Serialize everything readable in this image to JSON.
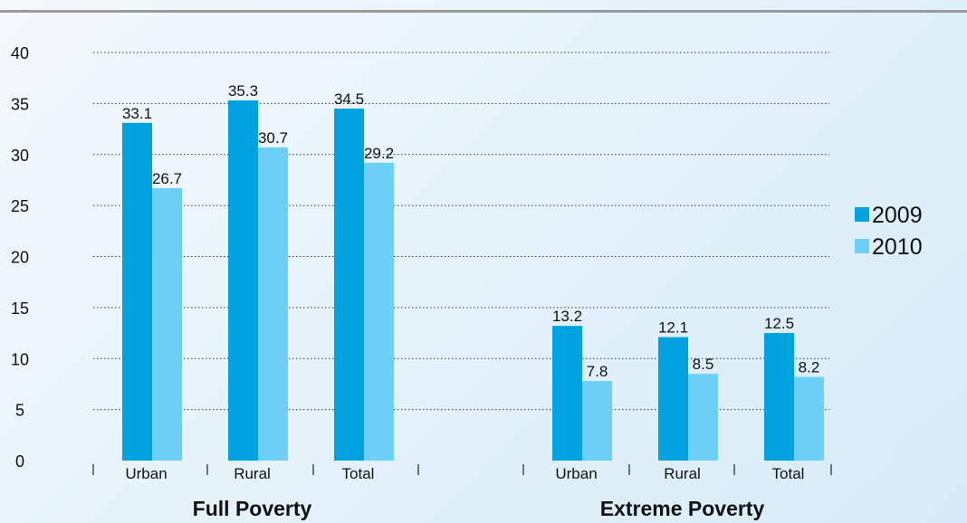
{
  "colors": {
    "series_2009": "#00a3e0",
    "series_2010": "#6dcff6",
    "grid": "#333333",
    "text": "#111111"
  },
  "chart_data": {
    "type": "bar",
    "title": "",
    "xlabel": "",
    "ylabel": "",
    "ylim": [
      0,
      40
    ],
    "yticks": [
      0,
      5,
      10,
      15,
      20,
      25,
      30,
      35,
      40
    ],
    "grid": true,
    "legend_position": "right",
    "groups": [
      {
        "label": "Full Poverty",
        "categories": [
          "Urban",
          "Rural",
          "Total"
        ]
      },
      {
        "label": "Extreme Poverty",
        "categories": [
          "Urban",
          "Rural",
          "Total"
        ]
      }
    ],
    "series": [
      {
        "name": "2009",
        "values": [
          [
            33.1,
            35.3,
            34.5
          ],
          [
            13.2,
            12.1,
            12.5
          ]
        ]
      },
      {
        "name": "2010",
        "values": [
          [
            26.7,
            30.7,
            29.2
          ],
          [
            7.8,
            8.5,
            8.2
          ]
        ]
      }
    ]
  }
}
